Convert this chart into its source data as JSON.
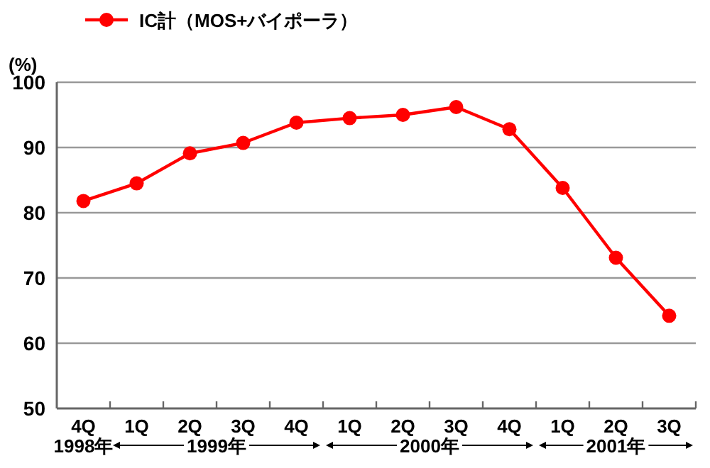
{
  "chart_data": {
    "type": "line",
    "ylabel": "(%)",
    "categories": [
      "4Q",
      "1Q",
      "2Q",
      "3Q",
      "4Q",
      "1Q",
      "2Q",
      "3Q",
      "4Q",
      "1Q",
      "2Q",
      "3Q"
    ],
    "series": [
      {
        "name": "IC計（MOS+バイポーラ）",
        "color": "#ff0000",
        "values": [
          81.8,
          84.5,
          89.1,
          90.7,
          93.8,
          94.5,
          95.0,
          96.2,
          92.8,
          83.8,
          73.1,
          64.2
        ]
      }
    ],
    "ylim": [
      50,
      100
    ],
    "yticks": [
      50,
      60,
      70,
      80,
      90,
      100
    ],
    "grid": "y",
    "legend": "top left",
    "marker": "circle",
    "line_style": "solid",
    "annotations": [
      "1998年",
      "1999年",
      "2000年",
      "2001年"
    ]
  }
}
